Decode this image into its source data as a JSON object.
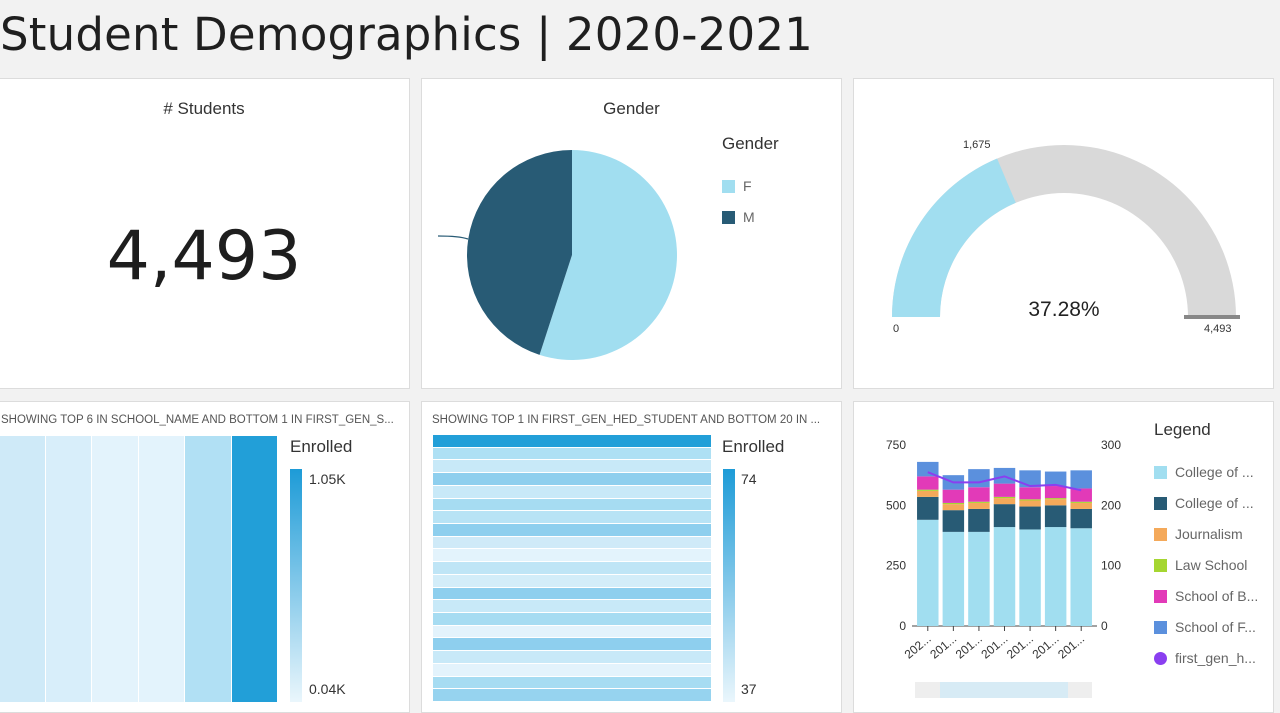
{
  "page": {
    "title": "Student Demographics | 2020-2021"
  },
  "students_card": {
    "title": "# Students",
    "value": "4,493"
  },
  "gender_card": {
    "title": "Gender",
    "legend_title": "Gender",
    "legend": [
      {
        "label": "F",
        "color": "#a1def0"
      },
      {
        "label": "M",
        "color": "#285b75"
      }
    ]
  },
  "gauge_card": {
    "value_label": "1,675",
    "min_label": "0",
    "max_label": "4,493",
    "percent_label": "37.28%",
    "fill_color": "#a1def0",
    "track_color": "#d9d9d9",
    "fraction": 0.3728
  },
  "heatmap_school": {
    "caption": "SHOWING TOP 6 IN SCHOOL_NAME AND BOTTOM 1 IN FIRST_GEN_S...",
    "legend_title": "Enrolled",
    "max_label": "1.05K",
    "min_label": "0.04K"
  },
  "heatmap_first_gen": {
    "caption": "SHOWING TOP 1 IN FIRST_GEN_HED_STUDENT AND BOTTOM 20 IN ...",
    "legend_title": "Enrolled",
    "max_label": "74",
    "min_label": "37"
  },
  "combo_card": {
    "legend_title": "Legend",
    "legend": [
      {
        "label": "College of ...",
        "color": "#a1def0",
        "shape": "square"
      },
      {
        "label": "College of ...",
        "color": "#285b75",
        "shape": "square"
      },
      {
        "label": "Journalism",
        "color": "#f4a95a",
        "shape": "square"
      },
      {
        "label": "Law School",
        "color": "#a5d631",
        "shape": "square"
      },
      {
        "label": "School of B...",
        "color": "#e23ab8",
        "shape": "square"
      },
      {
        "label": "School of F...",
        "color": "#5b90dd",
        "shape": "square"
      },
      {
        "label": "first_gen_h...",
        "color": "#8a3ff0",
        "shape": "circle"
      }
    ],
    "left_axis": [
      "750",
      "500",
      "250",
      "0"
    ],
    "right_axis": [
      "300",
      "200",
      "100",
      "0"
    ],
    "x_labels": [
      "202...",
      "201...",
      "201...",
      "201...",
      "201...",
      "201...",
      "201..."
    ]
  },
  "chart_data": [
    {
      "type": "pie",
      "title": "Gender",
      "categories": [
        "F",
        "M"
      ],
      "values": [
        55,
        45
      ],
      "colors": [
        "#a1def0",
        "#285b75"
      ]
    },
    {
      "type": "heatmap",
      "caption": "SHOWING TOP 6 IN SCHOOL_NAME AND BOTTOM 1 IN FIRST_GEN_S...",
      "colorscale_range": [
        40,
        1050
      ],
      "column_colors": [
        "#cfeaf8",
        "#d8eefa",
        "#e3f3fc",
        "#e3f3fc",
        "#b1e0f4",
        "#229fd8"
      ]
    },
    {
      "type": "heatmap",
      "caption": "SHOWING TOP 1 IN FIRST_GEN_HED_STUDENT AND BOTTOM 20 IN ...",
      "colorscale_range": [
        37,
        74
      ],
      "row_colors": [
        "#229fd8",
        "#aee0f4",
        "#c8e9f8",
        "#8ecfee",
        "#c8e9f8",
        "#a6dcf2",
        "#b8e3f5",
        "#8ecfee",
        "#cfeaf8",
        "#e3f3fc",
        "#bfe5f6",
        "#d3edf9",
        "#8ecfee",
        "#c8e9f8",
        "#a6dcf2",
        "#e3f3fc",
        "#8ecfee",
        "#c8e9f8",
        "#e3f3fc",
        "#a6dcf2",
        "#96d3ef"
      ]
    },
    {
      "type": "bar",
      "stacked": true,
      "categories": [
        "202...",
        "201...",
        "201...",
        "201...",
        "201...",
        "201...",
        "201..."
      ],
      "ylim": [
        0,
        750
      ],
      "y2lim": [
        0,
        300
      ],
      "series": [
        {
          "name": "College of ...",
          "color": "#a1def0",
          "values": [
            440,
            390,
            390,
            410,
            400,
            410,
            405
          ]
        },
        {
          "name": "College of ...",
          "color": "#285b75",
          "values": [
            95,
            90,
            95,
            95,
            95,
            90,
            80
          ]
        },
        {
          "name": "Journalism",
          "color": "#f4a95a",
          "values": [
            25,
            25,
            25,
            25,
            25,
            25,
            25
          ]
        },
        {
          "name": "Law School",
          "color": "#a5d631",
          "values": [
            5,
            5,
            5,
            5,
            5,
            5,
            5
          ]
        },
        {
          "name": "School of B...",
          "color": "#e23ab8",
          "values": [
            55,
            55,
            60,
            55,
            50,
            50,
            55
          ]
        },
        {
          "name": "School of F...",
          "color": "#5b90dd",
          "values": [
            60,
            60,
            75,
            65,
            70,
            60,
            75
          ]
        }
      ],
      "line_series": {
        "name": "first_gen_h...",
        "color": "#8a3ff0",
        "axis": "right",
        "values": [
          255,
          238,
          238,
          248,
          232,
          234,
          225
        ]
      }
    }
  ]
}
